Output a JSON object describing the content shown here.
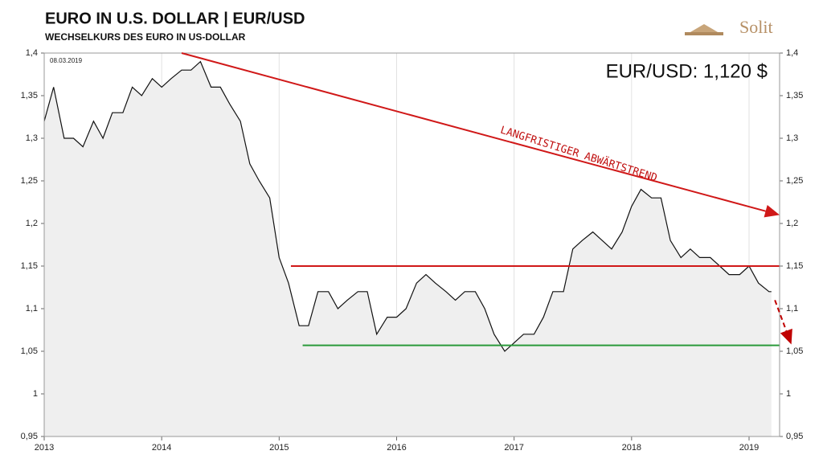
{
  "chart_data": {
    "type": "line",
    "title": "EURO IN U.S. DOLLAR | EUR/USD",
    "subtitle": "WECHSELKURS DES EURO IN US-DOLLAR",
    "logo": "Solit",
    "date_label": "08.03.2019",
    "current_label": "EUR/USD: 1,120 $",
    "trend_label": "LANGFRISTIGER ABWÄRTSTREND",
    "x": [
      2013.0,
      2013.08,
      2013.17,
      2013.25,
      2013.33,
      2013.42,
      2013.5,
      2013.58,
      2013.67,
      2013.75,
      2013.83,
      2013.92,
      2014.0,
      2014.08,
      2014.17,
      2014.25,
      2014.33,
      2014.42,
      2014.5,
      2014.58,
      2014.67,
      2014.75,
      2014.83,
      2014.92,
      2015.0,
      2015.08,
      2015.17,
      2015.25,
      2015.33,
      2015.42,
      2015.5,
      2015.58,
      2015.67,
      2015.75,
      2015.83,
      2015.92,
      2016.0,
      2016.08,
      2016.17,
      2016.25,
      2016.33,
      2016.42,
      2016.5,
      2016.58,
      2016.67,
      2016.75,
      2016.83,
      2016.92,
      2017.0,
      2017.08,
      2017.17,
      2017.25,
      2017.33,
      2017.42,
      2017.5,
      2017.58,
      2017.67,
      2017.75,
      2017.83,
      2017.92,
      2018.0,
      2018.08,
      2018.17,
      2018.25,
      2018.33,
      2018.42,
      2018.5,
      2018.58,
      2018.67,
      2018.75,
      2018.83,
      2018.92,
      2019.0,
      2019.08,
      2019.17,
      2019.19
    ],
    "series": [
      {
        "name": "EUR/USD",
        "color": "#111111",
        "fill": "#efefef",
        "values": [
          1.32,
          1.36,
          1.3,
          1.3,
          1.29,
          1.32,
          1.3,
          1.33,
          1.33,
          1.36,
          1.35,
          1.37,
          1.36,
          1.37,
          1.38,
          1.38,
          1.39,
          1.36,
          1.36,
          1.34,
          1.32,
          1.27,
          1.25,
          1.23,
          1.16,
          1.13,
          1.08,
          1.08,
          1.12,
          1.12,
          1.1,
          1.11,
          1.12,
          1.12,
          1.07,
          1.09,
          1.09,
          1.1,
          1.13,
          1.14,
          1.13,
          1.12,
          1.11,
          1.12,
          1.12,
          1.1,
          1.07,
          1.05,
          1.06,
          1.07,
          1.07,
          1.09,
          1.12,
          1.12,
          1.17,
          1.18,
          1.19,
          1.18,
          1.17,
          1.19,
          1.22,
          1.24,
          1.23,
          1.23,
          1.18,
          1.16,
          1.17,
          1.16,
          1.16,
          1.15,
          1.14,
          1.14,
          1.15,
          1.13,
          1.12,
          1.12
        ]
      }
    ],
    "xlim": [
      2013,
      2019.26
    ],
    "xticks": [
      2013,
      2014,
      2015,
      2016,
      2017,
      2018,
      2019
    ],
    "ylim": [
      0.95,
      1.4
    ],
    "yticks": [
      {
        "value": 0.95,
        "label": "0,95"
      },
      1,
      {
        "value": 1.05,
        "label": "1,05"
      },
      {
        "value": 1.1,
        "label": "1,1"
      },
      {
        "value": 1.15,
        "label": "1,15"
      },
      {
        "value": 1.2,
        "label": "1,2"
      },
      {
        "value": 1.25,
        "label": "1,25"
      },
      {
        "value": 1.3,
        "label": "1,3"
      },
      {
        "value": 1.35,
        "label": "1,35"
      },
      {
        "value": 1.4,
        "label": "1,4"
      }
    ],
    "grid": true,
    "reference_lines": [
      {
        "y": 1.15,
        "x": [
          2015.1,
          2019.26
        ],
        "color": "#d01818"
      },
      {
        "y": 1.057,
        "x": [
          2015.2,
          2019.26
        ],
        "color": "#2a9a3a"
      }
    ],
    "arrows": [
      {
        "from": [
          2014.17,
          1.4
        ],
        "to": [
          2019.26,
          1.21
        ],
        "color": "#d01818",
        "dashed": false
      },
      {
        "from": [
          2019.22,
          1.11
        ],
        "to": [
          2019.36,
          1.058
        ],
        "color": "#c00000",
        "dashed": true
      }
    ]
  }
}
